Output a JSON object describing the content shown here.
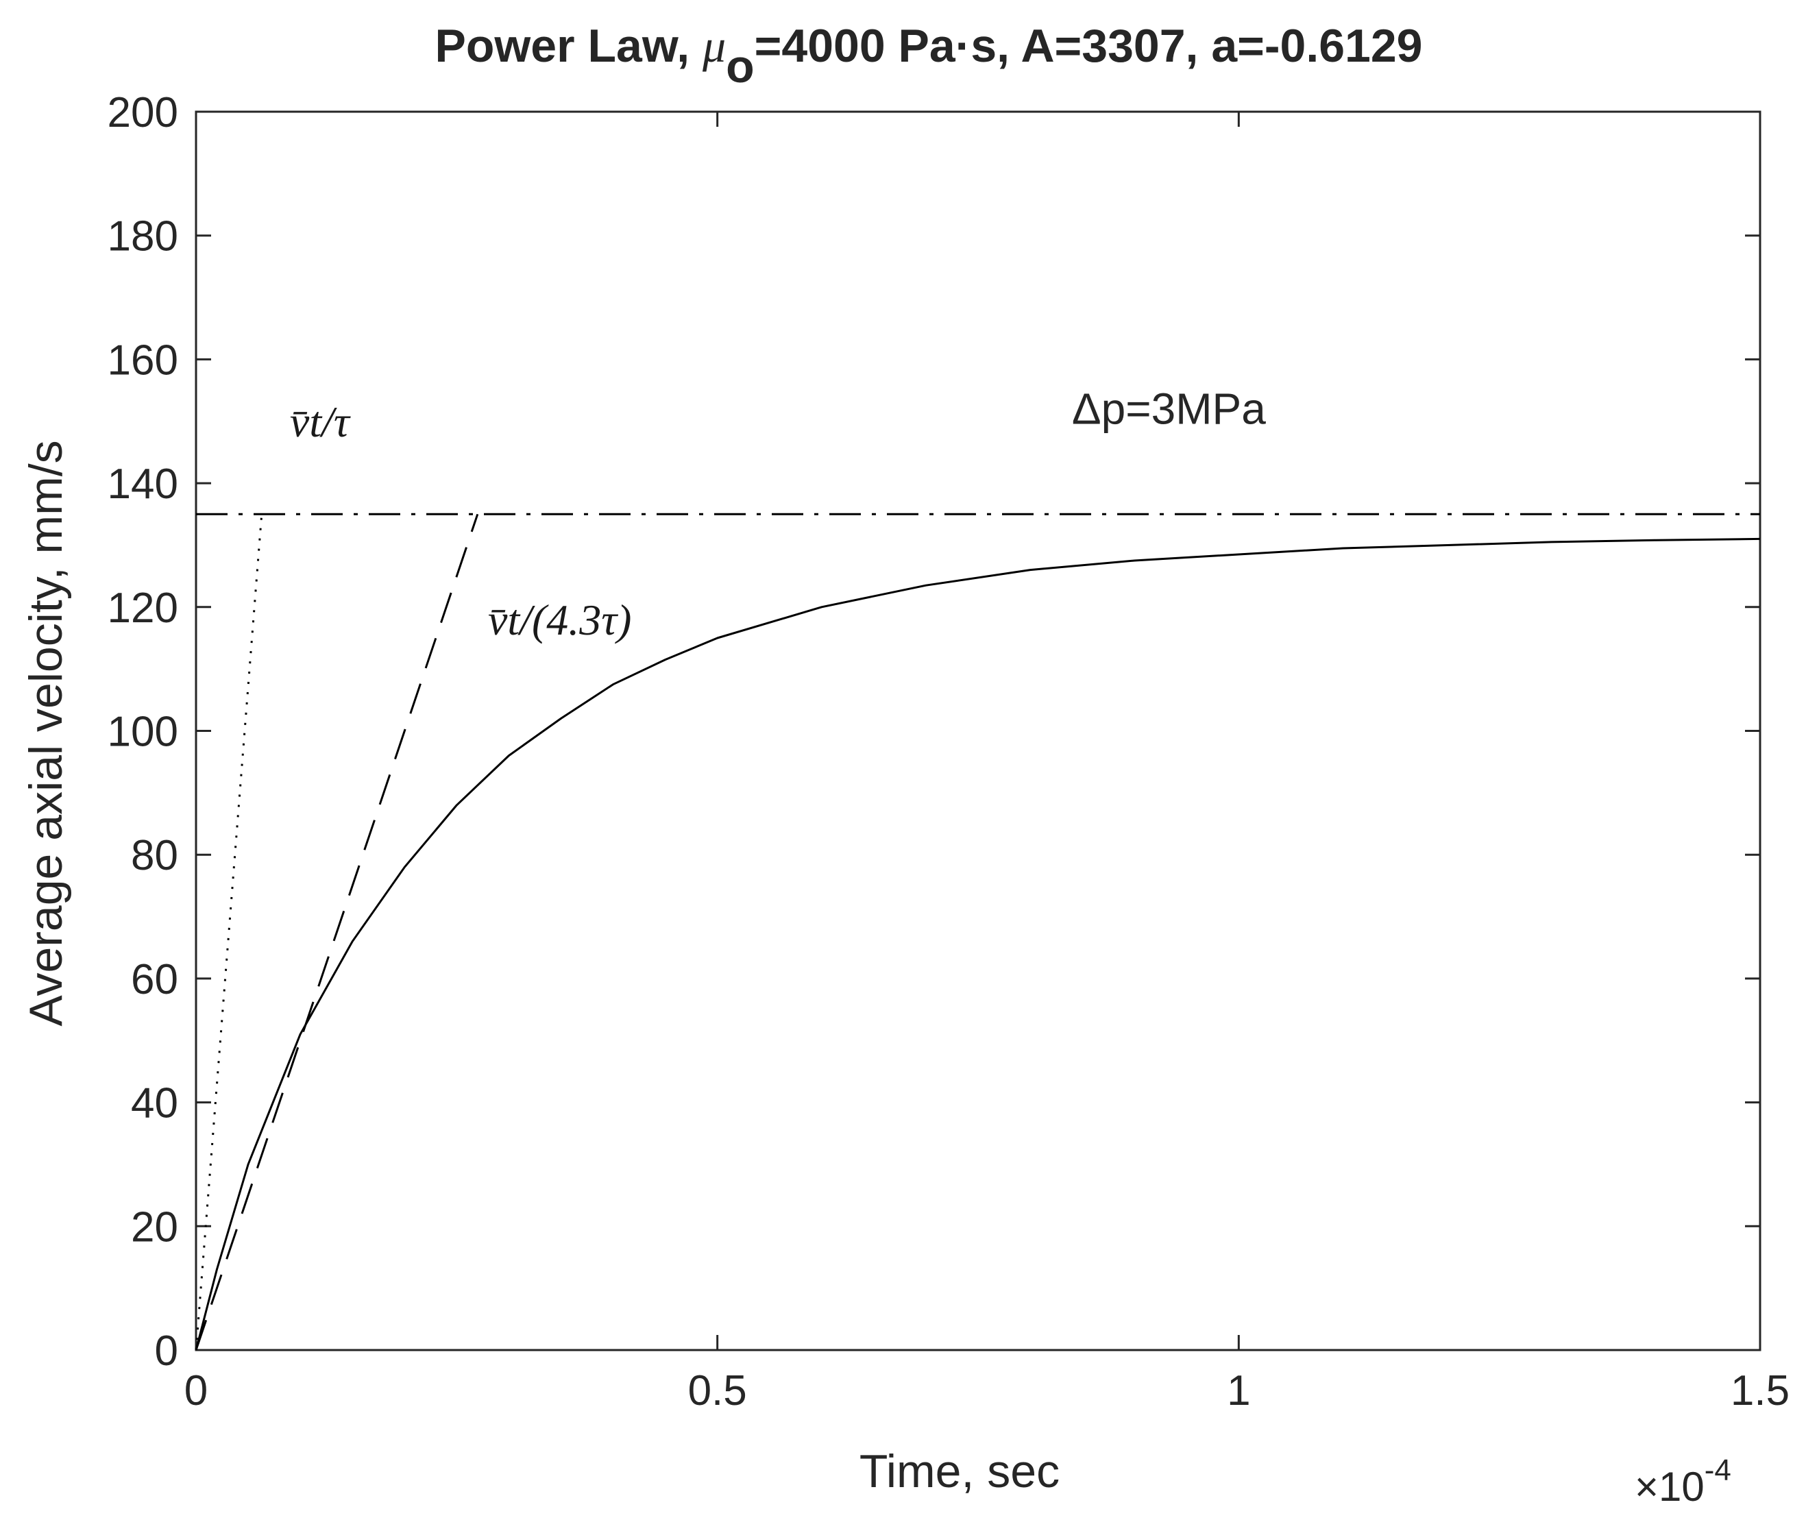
{
  "chart_data": {
    "type": "line",
    "title": "Power Law, μo=4000 Pa·s, A=3307, a=-0.6129",
    "title_parts": {
      "prefix": "Power Law, ",
      "mu": "μ",
      "mu_sub": "o",
      "suffix": "=4000 Pa·s, A=3307, a=-0.6129"
    },
    "xlabel": "Time, sec",
    "ylabel": "Average axial velocity, mm/s",
    "x_exponent": {
      "base": "×10",
      "power": "-4"
    },
    "xlim": [
      0,
      1.5
    ],
    "ylim": [
      0,
      200
    ],
    "x_ticks": [
      0,
      0.5,
      1,
      1.5
    ],
    "x_tick_labels": [
      "0",
      "0.5",
      "1",
      "1.5"
    ],
    "y_ticks": [
      0,
      20,
      40,
      60,
      80,
      100,
      120,
      140,
      160,
      180,
      200
    ],
    "y_tick_labels": [
      "0",
      "20",
      "40",
      "60",
      "80",
      "100",
      "120",
      "140",
      "160",
      "180",
      "200"
    ],
    "grid": false,
    "annotations": [
      {
        "text": "v̄t/τ",
        "x": 0.09,
        "y": 150
      },
      {
        "text": "v̄t/(4.3τ)",
        "x": 0.28,
        "y": 118
      },
      {
        "text": "Δp=3MPa",
        "x": 0.84,
        "y": 152
      }
    ],
    "series": [
      {
        "style": "solid",
        "color": "#000000",
        "x": [
          0,
          0.02,
          0.05,
          0.1,
          0.15,
          0.2,
          0.25,
          0.3,
          0.35,
          0.4,
          0.45,
          0.5,
          0.6,
          0.7,
          0.8,
          0.9,
          1.0,
          1.1,
          1.2,
          1.3,
          1.4,
          1.5
        ],
        "y": [
          0,
          13,
          30,
          51,
          66,
          78,
          88,
          96,
          102,
          107.5,
          111.5,
          115,
          120,
          123.5,
          126,
          127.5,
          128.5,
          129.5,
          130,
          130.5,
          130.8,
          131
        ]
      },
      {
        "style": "dotted",
        "color": "#000000",
        "x": [
          0,
          0.063
        ],
        "y": [
          0,
          135
        ]
      },
      {
        "style": "dashed",
        "color": "#000000",
        "x": [
          0,
          0.27
        ],
        "y": [
          0,
          135
        ]
      },
      {
        "style": "dash-dot",
        "color": "#000000",
        "x": [
          0,
          1.5
        ],
        "y": [
          135,
          135
        ]
      }
    ]
  }
}
